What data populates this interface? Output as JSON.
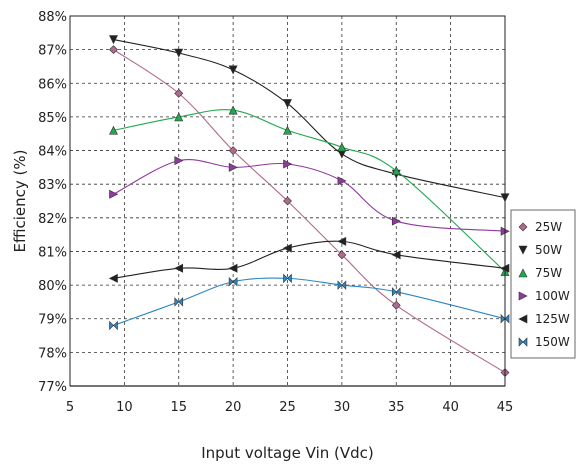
{
  "chart_data": {
    "type": "line",
    "title": "",
    "xlabel": "Input voltage Vin (Vdc)",
    "ylabel": "Efficiency (%)",
    "xlim": [
      5,
      45
    ],
    "ylim": [
      77,
      88
    ],
    "xticks": [
      5,
      10,
      15,
      20,
      25,
      30,
      35,
      40,
      45
    ],
    "yticks": [
      77,
      78,
      79,
      80,
      81,
      82,
      83,
      84,
      85,
      86,
      87,
      88
    ],
    "yticks_suffix": "%",
    "grid": true,
    "legend_position": "right",
    "x": [
      9,
      15,
      20,
      25,
      30,
      35,
      45
    ],
    "series": [
      {
        "name": "25W",
        "color": "#b06a8c",
        "marker": "diamond",
        "values": [
          87.0,
          85.7,
          84.0,
          82.5,
          80.9,
          79.4,
          77.4
        ]
      },
      {
        "name": "50W",
        "color": "#222222",
        "marker": "triangle-down",
        "values": [
          87.3,
          86.9,
          86.4,
          85.4,
          83.9,
          83.3,
          82.6
        ]
      },
      {
        "name": "75W",
        "color": "#1fa84c",
        "marker": "triangle-up",
        "values": [
          84.6,
          85.0,
          85.2,
          84.6,
          84.1,
          83.4,
          80.4
        ]
      },
      {
        "name": "100W",
        "color": "#8e3a9e",
        "marker": "triangle-right",
        "values": [
          82.7,
          83.7,
          83.5,
          83.6,
          83.1,
          81.9,
          81.6
        ]
      },
      {
        "name": "125W",
        "color": "#222222",
        "marker": "triangle-left",
        "values": [
          80.2,
          80.5,
          80.5,
          81.1,
          81.3,
          80.9,
          80.5
        ]
      },
      {
        "name": "150W",
        "color": "#2a87c4",
        "marker": "bowtie",
        "values": [
          78.8,
          79.5,
          80.1,
          80.2,
          80.0,
          79.8,
          79.0
        ]
      }
    ]
  }
}
